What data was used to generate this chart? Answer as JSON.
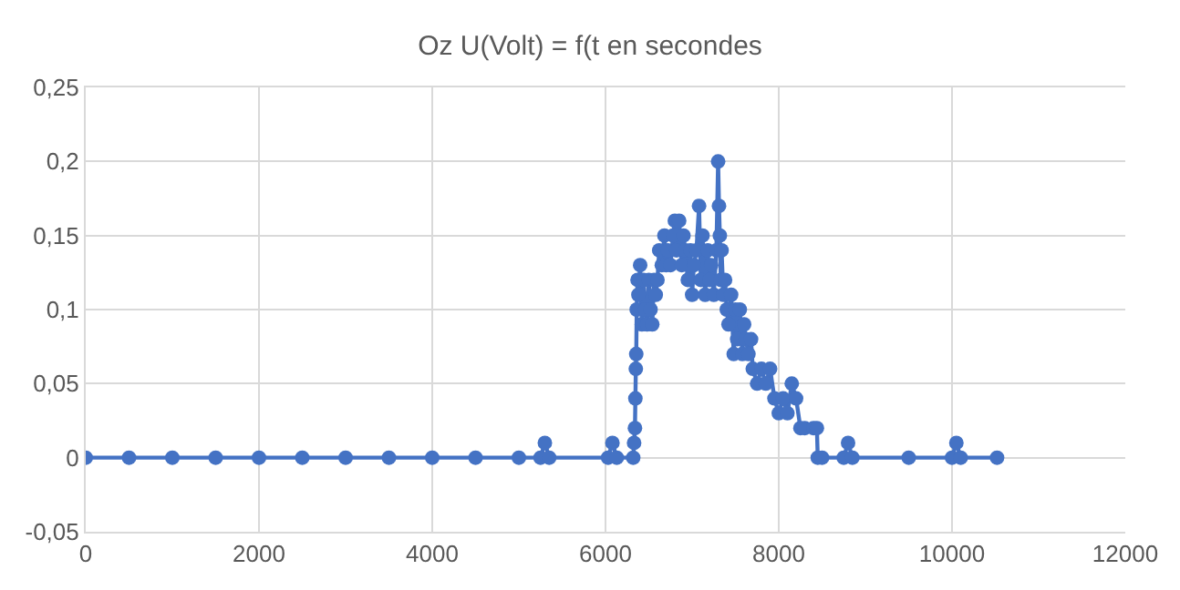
{
  "chart_data": {
    "type": "line",
    "title": "Oz U(Volt) = f(t en secondes",
    "x": [
      0,
      500,
      1000,
      1500,
      2000,
      2500,
      3000,
      3500,
      4000,
      4500,
      5000,
      5250,
      5300,
      5350,
      6030,
      6080,
      6130,
      6320,
      6330,
      6340,
      6345,
      6350,
      6355,
      6360,
      6370,
      6380,
      6400,
      6420,
      6440,
      6460,
      6480,
      6500,
      6520,
      6540,
      6560,
      6580,
      6600,
      6620,
      6650,
      6680,
      6700,
      6720,
      6750,
      6780,
      6800,
      6820,
      6850,
      6880,
      6900,
      6920,
      6950,
      6980,
      7000,
      7020,
      7050,
      7080,
      7100,
      7120,
      7150,
      7180,
      7200,
      7220,
      7250,
      7280,
      7300,
      7310,
      7320,
      7330,
      7340,
      7360,
      7380,
      7400,
      7420,
      7450,
      7480,
      7500,
      7520,
      7550,
      7580,
      7600,
      7620,
      7650,
      7680,
      7700,
      7750,
      7800,
      7850,
      7900,
      7950,
      8000,
      8050,
      8100,
      8150,
      8200,
      8250,
      8300,
      8400,
      8440,
      8450,
      8500,
      8750,
      8800,
      8850,
      9500,
      10000,
      10050,
      10100,
      10520
    ],
    "series": [
      {
        "color": "#4472c4",
        "values": [
          0,
          0,
          0,
          0,
          0,
          0,
          0,
          0,
          0,
          0,
          0,
          0,
          0.01,
          0,
          0,
          0.01,
          0,
          0,
          0.01,
          0.02,
          0.04,
          0.06,
          0.07,
          0.1,
          0.12,
          0.11,
          0.13,
          0.09,
          0.12,
          0.1,
          0.09,
          0.12,
          0.1,
          0.09,
          0.12,
          0.11,
          0.12,
          0.14,
          0.13,
          0.15,
          0.13,
          0.14,
          0.13,
          0.15,
          0.16,
          0.14,
          0.16,
          0.13,
          0.15,
          0.14,
          0.12,
          0.14,
          0.11,
          0.13,
          0.14,
          0.17,
          0.12,
          0.15,
          0.11,
          0.14,
          0.12,
          0.13,
          0.11,
          0.14,
          0.2,
          0.17,
          0.15,
          0.12,
          0.14,
          0.11,
          0.12,
          0.1,
          0.09,
          0.11,
          0.07,
          0.1,
          0.08,
          0.1,
          0.07,
          0.09,
          0.08,
          0.07,
          0.08,
          0.06,
          0.05,
          0.06,
          0.05,
          0.06,
          0.04,
          0.03,
          0.04,
          0.03,
          0.05,
          0.04,
          0.02,
          0.02,
          0.02,
          0.02,
          0,
          0,
          0,
          0.01,
          0,
          0,
          0,
          0.01,
          0,
          0
        ]
      }
    ],
    "xlim": [
      0,
      12000
    ],
    "xticks": [
      0,
      2000,
      4000,
      6000,
      8000,
      10000,
      12000
    ],
    "ylim": [
      -0.05,
      0.25
    ],
    "yticks": [
      {
        "value": -0.05,
        "label": "-0,05"
      },
      {
        "value": 0,
        "label": "0"
      },
      {
        "value": 0.05,
        "label": "0,05"
      },
      {
        "value": 0.1,
        "label": "0,1"
      },
      {
        "value": 0.15,
        "label": "0,15"
      },
      {
        "value": 0.2,
        "label": "0,2"
      },
      {
        "value": 0.25,
        "label": "0,25"
      }
    ],
    "grid": true,
    "marker": "circle",
    "line_style": "solid"
  }
}
